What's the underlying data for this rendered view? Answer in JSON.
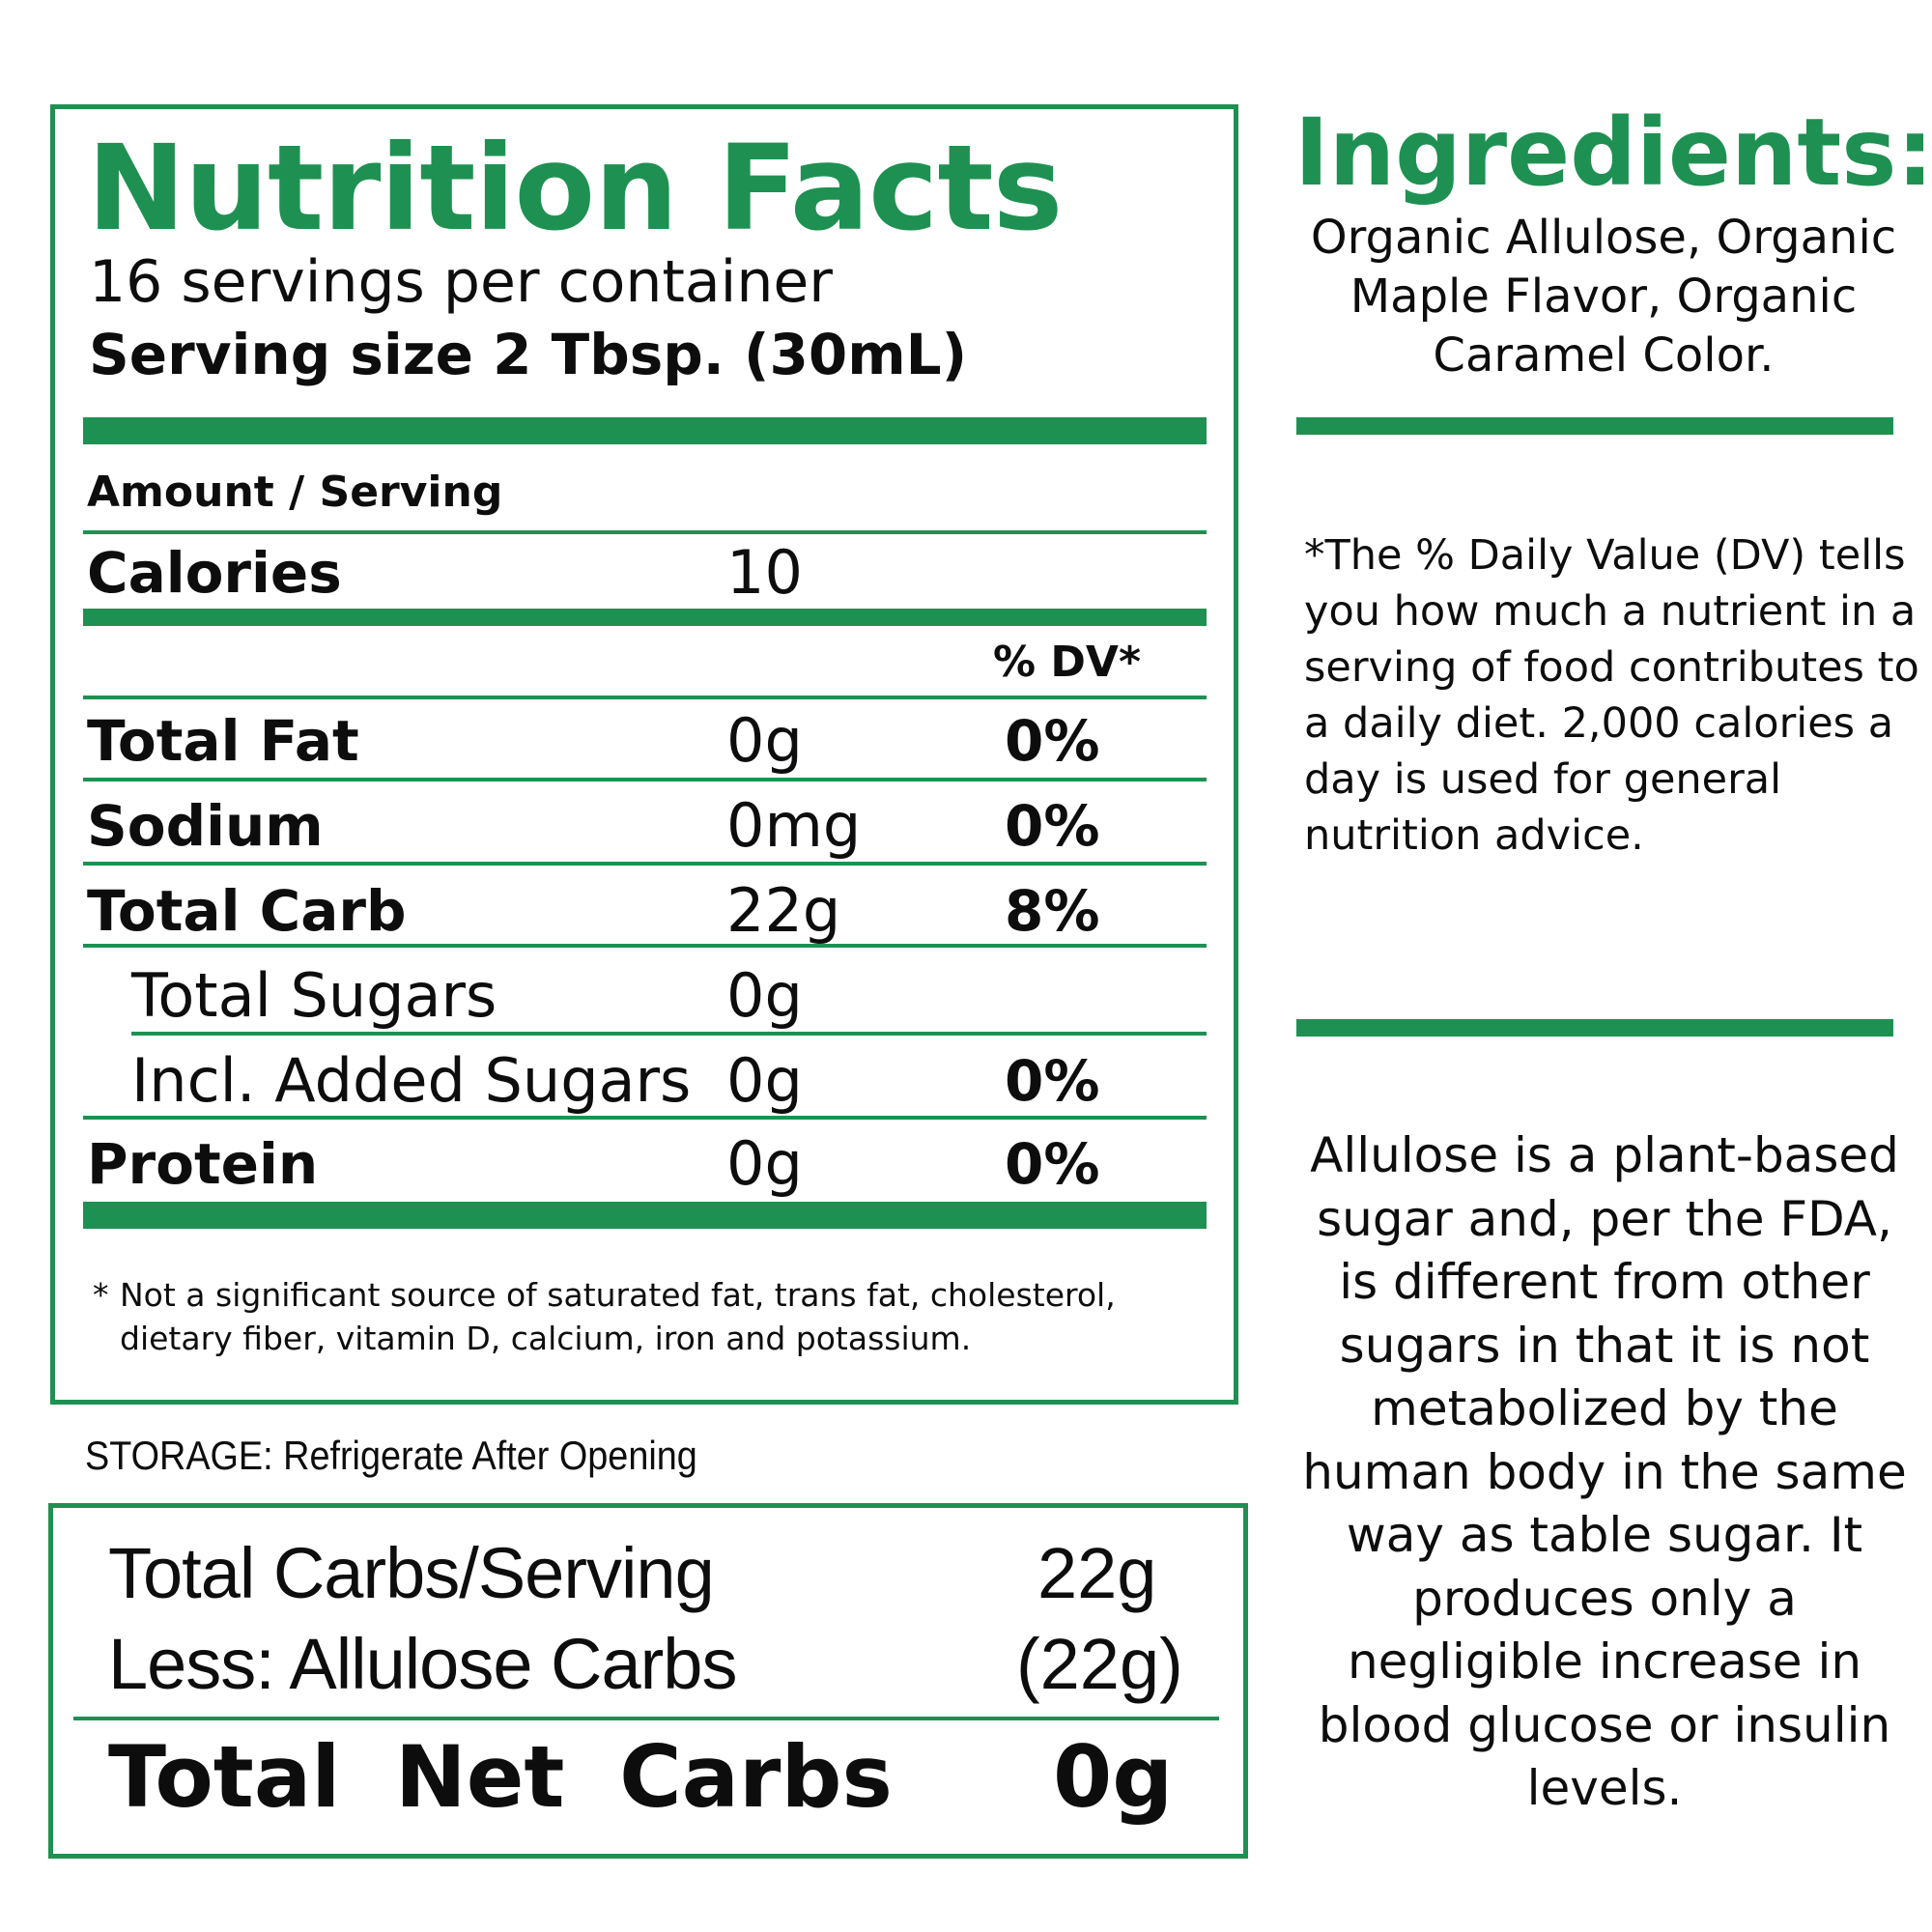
{
  "nutrition": {
    "title": "Nutrition Facts",
    "servings_per_container": "16 servings per container",
    "serving_size": "Serving size 2 Tbsp. (30mL)",
    "amount_label": "Amount / Serving",
    "calories": {
      "label": "Calories",
      "value": "10"
    },
    "dv_header": "% DV*",
    "rows": [
      {
        "label": "Total Fat",
        "amount": "0g",
        "dv": "0%"
      },
      {
        "label": "Sodium",
        "amount": "0mg",
        "dv": "0%"
      },
      {
        "label": "Total Carb",
        "amount": "22g",
        "dv": "8%"
      },
      {
        "label": "Total Sugars",
        "amount": "0g",
        "dv": ""
      },
      {
        "label": "Incl. Added Sugars",
        "amount": "0g",
        "dv": "0%"
      },
      {
        "label": "Protein",
        "amount": "0g",
        "dv": "0%"
      }
    ],
    "footnote_star": "*",
    "footnote": "Not a significant source of saturated fat, trans fat, cholesterol, dietary fiber, vitamin D, calcium, iron and potassium."
  },
  "storage": "STORAGE: Refrigerate After Opening",
  "net_carbs": {
    "total_label": "Total Carbs/Serving",
    "total_value": "22g",
    "less_label": "Less: Allulose Carbs",
    "less_value": "(22g)",
    "net_label": "Total Net Carbs",
    "net_value": "0g"
  },
  "ingredients": {
    "title": "Ingredients:",
    "text": "Organic Allulose, Organic Maple Flavor, Organic Caramel Color."
  },
  "dv_note": "*The % Daily Value (DV) tells you how much a nutrient in a serving of food contributes to a daily diet. 2,000 calories a day is used for general nutrition advice.",
  "allulose_note": "Allulose is a plant-based sugar and, per the FDA, is different from other sugars in that it is not metabolized by the human body in the same way as table sugar. It produces only a negligible increase in blood glucose or insulin levels.",
  "colors": {
    "accent": "#1e9152",
    "text": "#0d0d0d",
    "background": "#ffffff"
  }
}
